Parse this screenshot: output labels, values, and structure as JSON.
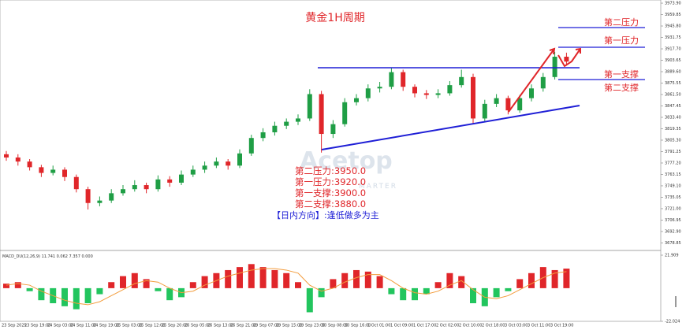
{
  "chart_data": {
    "type": "candlestick",
    "title": "黄金1H周期",
    "watermark": [
      "Acetop",
      "MARTER"
    ],
    "up_color": "#1f9e45",
    "down_color": "#e0262a",
    "ylim": [
      3669.6,
      3977.8
    ],
    "yticks": [
      {
        "value": 3973.9,
        "label": "3973.90"
      },
      {
        "value": 3959.85,
        "label": "3959.85"
      },
      {
        "value": 3945.8,
        "label": "3945.80"
      },
      {
        "value": 3931.75,
        "label": "3931.75"
      },
      {
        "value": 3917.7,
        "label": "3917.70"
      },
      {
        "value": 3903.65,
        "label": "3903.65"
      },
      {
        "value": 3889.6,
        "label": "3889.60"
      },
      {
        "value": 3875.55,
        "label": "3875.55"
      },
      {
        "value": 3861.5,
        "label": "3861.50"
      },
      {
        "value": 3847.45,
        "label": "3847.45"
      },
      {
        "value": 3833.4,
        "label": "3833.40"
      },
      {
        "value": 3819.35,
        "label": "3819.35"
      },
      {
        "value": 3805.3,
        "label": "3805.30"
      },
      {
        "value": 3791.25,
        "label": "3791.25"
      },
      {
        "value": 3777.2,
        "label": "3777.20"
      },
      {
        "value": 3763.15,
        "label": "3763.15"
      },
      {
        "value": 3749.1,
        "label": "3749.10"
      },
      {
        "value": 3735.05,
        "label": "3735.05"
      },
      {
        "value": 3721.0,
        "label": "3721.00"
      },
      {
        "value": 3706.95,
        "label": "3706.95"
      },
      {
        "value": 3692.9,
        "label": "3692.90"
      },
      {
        "value": 3678.85,
        "label": "3678.85"
      }
    ],
    "x": [
      "23 Sep 2025",
      "23 Sep 19:00",
      "24 Sep 03:00",
      "24 Sep 11:00",
      "24 Sep 19:00",
      "25 Sep 03:00",
      "25 Sep 12:00",
      "25 Sep 20:00",
      "26 Sep 05:00",
      "26 Sep 13:00",
      "26 Sep 21:00",
      "29 Sep 07:00",
      "29 Sep 15:00",
      "29 Sep 23:00",
      "30 Sep 08:00",
      "30 Sep 16:00",
      "1 Oct 01:00",
      "1 Oct 09:00",
      "1 Oct 17:00",
      "2 Oct 02:00",
      "2 Oct 10:00",
      "2 Oct 18:00",
      "3 Oct 03:00",
      "3 Oct 11:00",
      "3 Oct 19:00"
    ],
    "candles": [
      [
        3788,
        3792,
        3780,
        3784
      ],
      [
        3784,
        3788,
        3774,
        3779
      ],
      [
        3779,
        3782,
        3768,
        3772
      ],
      [
        3772,
        3775,
        3760,
        3765
      ],
      [
        3765,
        3774,
        3762,
        3769
      ],
      [
        3769,
        3772,
        3755,
        3760
      ],
      [
        3760,
        3763,
        3741,
        3745
      ],
      [
        3745,
        3748,
        3720,
        3728
      ],
      [
        3728,
        3736,
        3724,
        3731
      ],
      [
        3731,
        3745,
        3728,
        3740
      ],
      [
        3740,
        3750,
        3737,
        3745
      ],
      [
        3745,
        3756,
        3742,
        3750
      ],
      [
        3750,
        3753,
        3740,
        3745
      ],
      [
        3745,
        3762,
        3742,
        3757
      ],
      [
        3757,
        3761,
        3748,
        3753
      ],
      [
        3753,
        3768,
        3750,
        3763
      ],
      [
        3763,
        3774,
        3760,
        3769
      ],
      [
        3769,
        3779,
        3765,
        3774
      ],
      [
        3774,
        3784,
        3771,
        3779
      ],
      [
        3779,
        3782,
        3769,
        3774
      ],
      [
        3774,
        3794,
        3771,
        3789
      ],
      [
        3789,
        3812,
        3786,
        3808
      ],
      [
        3808,
        3820,
        3804,
        3815
      ],
      [
        3815,
        3828,
        3811,
        3823
      ],
      [
        3823,
        3832,
        3819,
        3828
      ],
      [
        3828,
        3837,
        3824,
        3832
      ],
      [
        3832,
        3868,
        3829,
        3862
      ],
      [
        3862,
        3866,
        3790,
        3813
      ],
      [
        3813,
        3830,
        3808,
        3825
      ],
      [
        3825,
        3857,
        3822,
        3852
      ],
      [
        3852,
        3862,
        3848,
        3857
      ],
      [
        3857,
        3874,
        3853,
        3869
      ],
      [
        3869,
        3877,
        3864,
        3871
      ],
      [
        3871,
        3894,
        3868,
        3889
      ],
      [
        3889,
        3892,
        3866,
        3871
      ],
      [
        3871,
        3874,
        3858,
        3863
      ],
      [
        3863,
        3867,
        3856,
        3861
      ],
      [
        3861,
        3868,
        3857,
        3863
      ],
      [
        3863,
        3878,
        3860,
        3873
      ],
      [
        3873,
        3892,
        3870,
        3883
      ],
      [
        3883,
        3887,
        3826,
        3832
      ],
      [
        3832,
        3855,
        3828,
        3850
      ],
      [
        3850,
        3862,
        3846,
        3857
      ],
      [
        3857,
        3860,
        3837,
        3842
      ],
      [
        3842,
        3861,
        3839,
        3857
      ],
      [
        3857,
        3874,
        3853,
        3869
      ],
      [
        3869,
        3888,
        3865,
        3883
      ],
      [
        3883,
        3914,
        3880,
        3908
      ],
      [
        3908,
        3913,
        3897,
        3902
      ]
    ],
    "macd_label": "MACD_DU(12,26,9) 11.741 0.062 7.357 0.000",
    "macd_ylim": [
      -22.024,
      21.909
    ],
    "macd_yticks": [
      21.909,
      -22.024
    ],
    "histogram": [
      3,
      4,
      -2,
      -8,
      -10,
      -12,
      -14,
      -10,
      -4,
      4,
      8,
      10,
      6,
      -2,
      -8,
      -6,
      4,
      8,
      10,
      12,
      14,
      16,
      14,
      12,
      10,
      4,
      -16,
      -6,
      6,
      10,
      12,
      11,
      8,
      -4,
      -8,
      -8,
      -4,
      4,
      10,
      8,
      -10,
      -12,
      -6,
      -2,
      6,
      10,
      14,
      12,
      13
    ],
    "signal": [
      2,
      3,
      2,
      -2,
      -5,
      -8,
      -10,
      -11,
      -9,
      -5,
      -1,
      3,
      5,
      4,
      0,
      -3,
      -2,
      2,
      5,
      8,
      10,
      12,
      13,
      13,
      12,
      10,
      2,
      -2,
      0,
      4,
      7,
      9,
      9,
      5,
      0,
      -3,
      -4,
      -2,
      2,
      5,
      -1,
      -6,
      -7,
      -5,
      -1,
      3,
      7,
      10,
      11
    ],
    "signal_color": "#f39c3c",
    "hist_up_color": "#e0262a",
    "hist_down_color": "#22c55e",
    "level_tags": [
      "第二压力",
      "第一压力",
      "第一支撑",
      "第二支撑"
    ],
    "level_notes": [
      "第二压力:3950.0",
      "第一压力:3920.0",
      "第一支撑:3900.0",
      "第二支撑:3880.0"
    ],
    "direction": "【日内方向】:逢低做多为主"
  }
}
